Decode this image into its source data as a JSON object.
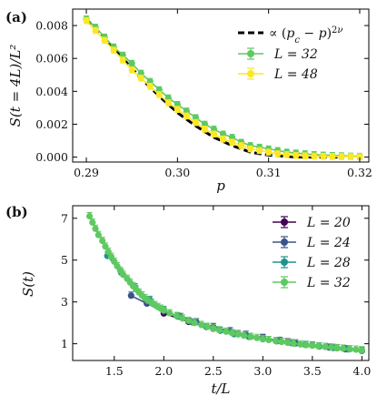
{
  "chart_data": [
    {
      "panel": "(a)",
      "type": "line",
      "xlabel": "p",
      "ylabel": "S(t = 4L)/L²",
      "xlim": [
        0.2885,
        0.321
      ],
      "ylim": [
        -0.0003,
        0.009
      ],
      "xticks": [
        0.29,
        0.3,
        0.31,
        0.32
      ],
      "xtick_labels": [
        "0.29",
        "0.30",
        "0.31",
        "0.32"
      ],
      "yticks": [
        0.0,
        0.002,
        0.004,
        0.006,
        0.008
      ],
      "ytick_labels": [
        "0.000",
        "0.002",
        "0.004",
        "0.006",
        "0.008"
      ],
      "legend_position": "top-right",
      "series": [
        {
          "name": "∝ (p_c − p)^{2ν}",
          "legend_label": "∝ (pc − p)2ν",
          "kind": "fit",
          "color": "#000000",
          "dashed": true,
          "x": [
            0.29,
            0.292,
            0.294,
            0.296,
            0.298,
            0.3,
            0.302,
            0.304,
            0.306,
            0.308,
            0.31,
            0.312,
            0.314,
            0.316,
            0.318
          ],
          "y": [
            0.0084,
            0.0072,
            0.006,
            0.0048,
            0.0037,
            0.0027,
            0.0019,
            0.0012,
            0.0007,
            0.0003,
            0.00012,
            3e-05,
            0.0,
            0.0,
            0.0
          ]
        },
        {
          "name": "L = 32",
          "legend_label": "L = 32",
          "kind": "errorbar",
          "color": "#5ec962",
          "x": [
            0.29,
            0.291,
            0.292,
            0.293,
            0.294,
            0.295,
            0.296,
            0.297,
            0.298,
            0.299,
            0.3,
            0.301,
            0.302,
            0.303,
            0.304,
            0.305,
            0.306,
            0.307,
            0.308,
            0.309,
            0.31,
            0.311,
            0.312,
            0.313,
            0.314,
            0.315,
            0.316,
            0.317,
            0.318,
            0.319,
            0.32
          ],
          "y": [
            0.0084,
            0.0079,
            0.0073,
            0.0067,
            0.0062,
            0.0057,
            0.0051,
            0.0046,
            0.0041,
            0.0036,
            0.0032,
            0.0028,
            0.0024,
            0.002,
            0.0017,
            0.0014,
            0.0012,
            0.0009,
            0.0007,
            0.0006,
            0.0005,
            0.0004,
            0.0003,
            0.00025,
            0.0002,
            0.00015,
            0.00012,
            0.0001,
            8e-05,
            6e-05,
            5e-05
          ],
          "yerr": 0.00018
        },
        {
          "name": "L = 48",
          "legend_label": "L = 48",
          "kind": "errorbar",
          "color": "#fde725",
          "x": [
            0.29,
            0.291,
            0.292,
            0.293,
            0.294,
            0.295,
            0.296,
            0.297,
            0.298,
            0.299,
            0.3,
            0.301,
            0.302,
            0.303,
            0.304,
            0.305,
            0.306,
            0.307,
            0.308,
            0.309,
            0.31,
            0.311,
            0.312,
            0.313,
            0.314,
            0.315,
            0.316,
            0.317,
            0.318,
            0.319,
            0.32
          ],
          "y": [
            0.0083,
            0.0077,
            0.0071,
            0.0065,
            0.0059,
            0.0053,
            0.0048,
            0.0043,
            0.0038,
            0.0033,
            0.0029,
            0.0025,
            0.0021,
            0.0017,
            0.0014,
            0.0011,
            0.0009,
            0.0007,
            0.0005,
            0.0004,
            0.0003,
            0.0002,
            0.00015,
            0.0001,
            8e-05,
            6e-05,
            5e-05,
            4e-05,
            3e-05,
            3e-05,
            2e-05
          ],
          "yerr": 0.00018
        }
      ]
    },
    {
      "panel": "(b)",
      "type": "line",
      "xlabel": "t/L",
      "ylabel": "S(t)",
      "xlim": [
        1.08,
        4.07
      ],
      "ylim": [
        0.2,
        7.6
      ],
      "xticks": [
        1.5,
        2.0,
        2.5,
        3.0,
        3.5,
        4.0
      ],
      "xtick_labels": [
        "1.5",
        "2.0",
        "2.5",
        "3.0",
        "3.5",
        "4.0"
      ],
      "yticks": [
        1,
        3,
        5,
        7
      ],
      "ytick_labels": [
        "1",
        "3",
        "5",
        "7"
      ],
      "legend_position": "top-right",
      "series": [
        {
          "name": "L = 20",
          "legend_label": "L = 20",
          "kind": "errorbar",
          "color": "#440154",
          "x": [
            2.0,
            2.25,
            2.5,
            2.75,
            3.0,
            3.25,
            3.5,
            3.75,
            4.0
          ],
          "y": [
            2.45,
            2.05,
            1.72,
            1.46,
            1.25,
            1.07,
            0.92,
            0.79,
            0.68
          ]
        },
        {
          "name": "L = 24",
          "legend_label": "L = 24",
          "kind": "errorbar",
          "color": "#3b528b",
          "x": [
            1.67,
            1.83,
            2.0,
            2.17,
            2.33,
            2.5,
            2.67,
            2.83,
            3.0,
            3.17,
            3.33,
            3.5,
            3.67,
            3.83,
            4.0
          ],
          "y": [
            3.3,
            2.92,
            2.55,
            2.28,
            2.03,
            1.8,
            1.6,
            1.43,
            1.28,
            1.14,
            1.02,
            0.92,
            0.82,
            0.74,
            0.66
          ]
        },
        {
          "name": "L = 28",
          "legend_label": "L = 28",
          "kind": "errorbar",
          "color": "#21918c",
          "x": [
            1.43,
            1.57,
            1.71,
            1.86,
            2.0,
            2.14,
            2.29,
            2.43,
            2.57,
            2.71,
            2.86,
            3.0,
            3.14,
            3.29,
            3.43,
            3.57,
            3.71,
            3.86,
            4.0
          ],
          "y": [
            5.2,
            4.4,
            3.7,
            3.1,
            2.62,
            2.3,
            2.02,
            1.8,
            1.62,
            1.46,
            1.33,
            1.22,
            1.12,
            1.03,
            0.95,
            0.87,
            0.8,
            0.73,
            0.67
          ]
        },
        {
          "name": "L = 32",
          "legend_label": "L = 32",
          "kind": "errorbar",
          "color": "#5ec962",
          "x": [
            1.25,
            1.28,
            1.31,
            1.34,
            1.38,
            1.41,
            1.44,
            1.47,
            1.5,
            1.53,
            1.56,
            1.59,
            1.63,
            1.66,
            1.69,
            1.72,
            1.75,
            1.78,
            1.81,
            1.84,
            1.88,
            1.91,
            1.94,
            1.97,
            2.0,
            2.06,
            2.13,
            2.19,
            2.25,
            2.31,
            2.38,
            2.44,
            2.5,
            2.56,
            2.63,
            2.69,
            2.75,
            2.81,
            2.88,
            2.94,
            3.0,
            3.06,
            3.13,
            3.19,
            3.25,
            3.31,
            3.38,
            3.44,
            3.5,
            3.56,
            3.63,
            3.69,
            3.75,
            3.81,
            3.88,
            3.94,
            4.0
          ],
          "y": [
            7.1,
            6.8,
            6.5,
            6.2,
            5.92,
            5.65,
            5.4,
            5.16,
            4.93,
            4.71,
            4.5,
            4.3,
            4.11,
            3.93,
            3.76,
            3.6,
            3.45,
            3.31,
            3.18,
            3.06,
            2.95,
            2.85,
            2.76,
            2.68,
            2.6,
            2.46,
            2.33,
            2.21,
            2.1,
            2.0,
            1.9,
            1.81,
            1.73,
            1.65,
            1.58,
            1.51,
            1.45,
            1.39,
            1.33,
            1.28,
            1.23,
            1.18,
            1.13,
            1.09,
            1.05,
            1.01,
            0.97,
            0.94,
            0.91,
            0.88,
            0.85,
            0.82,
            0.79,
            0.77,
            0.74,
            0.72,
            0.69
          ]
        }
      ]
    }
  ]
}
